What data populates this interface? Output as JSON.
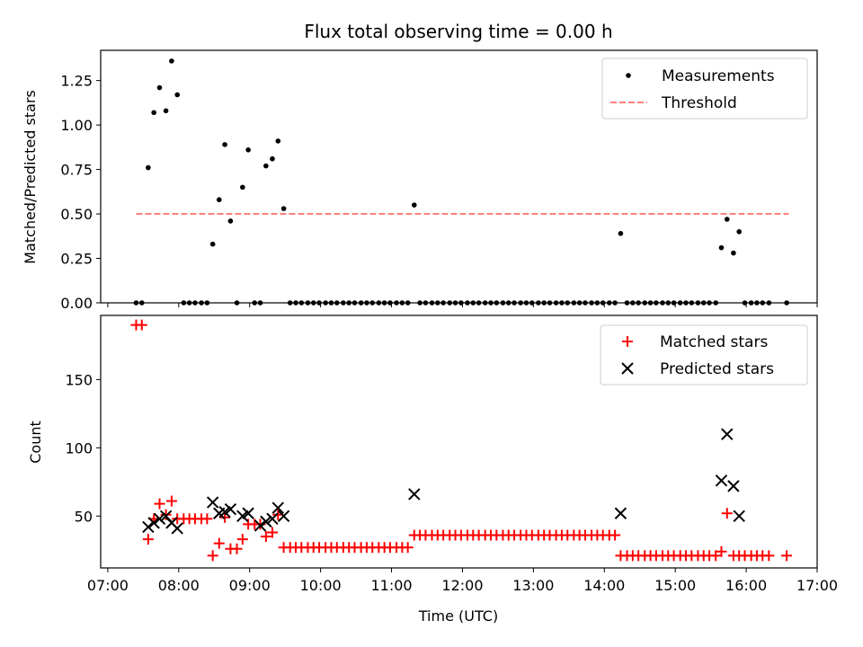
{
  "chart_data": [
    {
      "type": "scatter",
      "title": "Flux total observing time = 0.00 h",
      "xlabel": "",
      "ylabel": "Matched/Predicted stars",
      "xlim": [
        6.9,
        17.0
      ],
      "ylim": [
        0.0,
        1.42
      ],
      "xticks": [
        7,
        8,
        9,
        10,
        11,
        12,
        13,
        14,
        15,
        16,
        17
      ],
      "yticks": [
        0.0,
        0.25,
        0.5,
        0.75,
        1.0,
        1.25
      ],
      "ytick_labels": [
        "0.00",
        "0.25",
        "0.50",
        "0.75",
        "1.00",
        "1.25"
      ],
      "legend": [
        "Measurements",
        "Threshold"
      ],
      "legend_position": "top-right",
      "series": [
        {
          "name": "Measurements",
          "color": "#000000",
          "marker": "dot",
          "x": [
            7.4,
            7.48,
            7.57,
            7.65,
            7.73,
            7.82,
            7.9,
            7.98,
            8.07,
            8.15,
            8.23,
            8.32,
            8.4,
            8.48,
            8.57,
            8.65,
            8.73,
            8.82,
            8.9,
            8.98,
            9.07,
            9.15,
            9.23,
            9.32,
            9.4,
            9.48,
            9.57,
            9.65,
            9.73,
            9.82,
            9.9,
            9.98,
            10.07,
            10.15,
            10.23,
            10.32,
            10.4,
            10.48,
            10.57,
            10.65,
            10.73,
            10.82,
            10.9,
            10.98,
            11.07,
            11.15,
            11.23,
            11.32,
            11.4,
            11.48,
            11.57,
            11.65,
            11.73,
            11.82,
            11.9,
            11.98,
            12.07,
            12.15,
            12.23,
            12.32,
            12.4,
            12.48,
            12.57,
            12.65,
            12.73,
            12.82,
            12.9,
            12.98,
            13.07,
            13.15,
            13.23,
            13.32,
            13.4,
            13.48,
            13.57,
            13.65,
            13.73,
            13.82,
            13.9,
            13.98,
            14.07,
            14.15,
            14.23,
            14.32,
            14.4,
            14.48,
            14.57,
            14.65,
            14.73,
            14.82,
            14.9,
            14.98,
            15.07,
            15.15,
            15.23,
            15.32,
            15.4,
            15.48,
            15.57,
            15.65,
            15.73,
            15.82,
            15.9,
            15.98,
            16.07,
            16.15,
            16.23,
            16.32,
            16.57
          ],
          "y": [
            0.0,
            0.0,
            0.76,
            1.07,
            1.21,
            1.08,
            1.36,
            1.17,
            0.0,
            0.0,
            0.0,
            0.0,
            0.0,
            0.33,
            0.58,
            0.89,
            0.46,
            0.0,
            0.65,
            0.86,
            0.0,
            0.0,
            0.77,
            0.81,
            0.91,
            0.53,
            0.0,
            0.0,
            0.0,
            0.0,
            0.0,
            0.0,
            0.0,
            0.0,
            0.0,
            0.0,
            0.0,
            0.0,
            0.0,
            0.0,
            0.0,
            0.0,
            0.0,
            0.0,
            0.0,
            0.0,
            0.0,
            0.55,
            0.0,
            0.0,
            0.0,
            0.0,
            0.0,
            0.0,
            0.0,
            0.0,
            0.0,
            0.0,
            0.0,
            0.0,
            0.0,
            0.0,
            0.0,
            0.0,
            0.0,
            0.0,
            0.0,
            0.0,
            0.0,
            0.0,
            0.0,
            0.0,
            0.0,
            0.0,
            0.0,
            0.0,
            0.0,
            0.0,
            0.0,
            0.0,
            0.0,
            0.0,
            0.39,
            0.0,
            0.0,
            0.0,
            0.0,
            0.0,
            0.0,
            0.0,
            0.0,
            0.0,
            0.0,
            0.0,
            0.0,
            0.0,
            0.0,
            0.0,
            0.0,
            0.31,
            0.47,
            0.28,
            0.4,
            0.0,
            0.0,
            0.0,
            0.0,
            0.0,
            0.0
          ]
        },
        {
          "name": "Threshold",
          "color": "#ff7f7f",
          "line": "dashed",
          "x": [
            7.4,
            16.6
          ],
          "y": [
            0.5,
            0.5
          ]
        }
      ]
    },
    {
      "type": "scatter",
      "title": "",
      "xlabel": "Time (UTC)",
      "ylabel": "Count",
      "xlim": [
        6.9,
        17.0
      ],
      "ylim": [
        12,
        197
      ],
      "xticks": [
        7,
        8,
        9,
        10,
        11,
        12,
        13,
        14,
        15,
        16,
        17
      ],
      "xtick_labels": [
        "07:00",
        "08:00",
        "09:00",
        "10:00",
        "11:00",
        "12:00",
        "13:00",
        "14:00",
        "15:00",
        "16:00",
        "17:00"
      ],
      "yticks": [
        50,
        100,
        150
      ],
      "legend": [
        "Matched stars",
        "Predicted stars"
      ],
      "legend_position": "top-right",
      "series": [
        {
          "name": "Matched stars",
          "color": "#ff0000",
          "marker": "plus",
          "x": [
            7.4,
            7.48,
            7.57,
            7.65,
            7.73,
            7.82,
            7.9,
            7.98,
            8.07,
            8.15,
            8.23,
            8.32,
            8.4,
            8.48,
            8.57,
            8.65,
            8.73,
            8.82,
            8.9,
            8.98,
            9.07,
            9.15,
            9.23,
            9.32,
            9.4,
            9.48,
            9.57,
            9.65,
            9.73,
            9.82,
            9.9,
            9.98,
            10.07,
            10.15,
            10.23,
            10.32,
            10.4,
            10.48,
            10.57,
            10.65,
            10.73,
            10.82,
            10.9,
            10.98,
            11.07,
            11.15,
            11.23,
            11.32,
            11.4,
            11.48,
            11.57,
            11.65,
            11.73,
            11.82,
            11.9,
            11.98,
            12.07,
            12.15,
            12.23,
            12.32,
            12.4,
            12.48,
            12.57,
            12.65,
            12.73,
            12.82,
            12.9,
            12.98,
            13.07,
            13.15,
            13.23,
            13.32,
            13.4,
            13.48,
            13.57,
            13.65,
            13.73,
            13.82,
            13.9,
            13.98,
            14.07,
            14.15,
            14.23,
            14.32,
            14.4,
            14.48,
            14.57,
            14.65,
            14.73,
            14.82,
            14.9,
            14.98,
            15.07,
            15.15,
            15.23,
            15.32,
            15.4,
            15.48,
            15.57,
            15.65,
            15.73,
            15.82,
            15.9,
            15.98,
            16.07,
            16.15,
            16.23,
            16.32,
            16.57
          ],
          "y": [
            190,
            190,
            33,
            48,
            59,
            51,
            61,
            48,
            48,
            48,
            48,
            48,
            48,
            21,
            30,
            49,
            26,
            26,
            33,
            44,
            44,
            44,
            35,
            38,
            51,
            27,
            27,
            27,
            27,
            27,
            27,
            27,
            27,
            27,
            27,
            27,
            27,
            27,
            27,
            27,
            27,
            27,
            27,
            27,
            27,
            27,
            27,
            36,
            36,
            36,
            36,
            36,
            36,
            36,
            36,
            36,
            36,
            36,
            36,
            36,
            36,
            36,
            36,
            36,
            36,
            36,
            36,
            36,
            36,
            36,
            36,
            36,
            36,
            36,
            36,
            36,
            36,
            36,
            36,
            36,
            36,
            36,
            21,
            21,
            21,
            21,
            21,
            21,
            21,
            21,
            21,
            21,
            21,
            21,
            21,
            21,
            21,
            21,
            21,
            24,
            52,
            21,
            21,
            21,
            21,
            21,
            21,
            21,
            21
          ]
        },
        {
          "name": "Predicted stars",
          "color": "#000000",
          "marker": "x",
          "x": [
            7.57,
            7.65,
            7.73,
            7.82,
            7.9,
            7.98,
            8.48,
            8.57,
            8.65,
            8.73,
            8.9,
            8.98,
            9.15,
            9.23,
            9.32,
            9.4,
            9.48,
            11.32,
            14.23,
            15.65,
            15.73,
            15.82,
            15.9
          ],
          "y": [
            42,
            45,
            48,
            50,
            45,
            41,
            60,
            52,
            53,
            55,
            50,
            52,
            43,
            46,
            48,
            56,
            50,
            66,
            52,
            76,
            110,
            72,
            50
          ]
        }
      ]
    }
  ]
}
